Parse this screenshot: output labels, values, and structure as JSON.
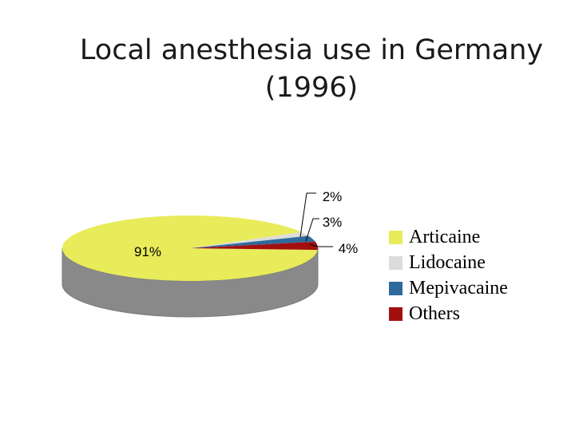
{
  "title_line1": "Local anesthesia use in Germany",
  "title_line2": "(1996)",
  "colors": {
    "articaine": "#e8ec5a",
    "lidocaine": "#dcdcdc",
    "mepivacaine": "#2e6a9c",
    "others": "#a30f0f",
    "side": "#898989"
  },
  "chart_data": {
    "type": "pie",
    "title": "Local anesthesia use in Germany (1996)",
    "categories": [
      "Articaine",
      "Lidocaine",
      "Mepivacaine",
      "Others"
    ],
    "values": [
      91,
      2,
      3,
      4
    ],
    "data_labels": [
      "91%",
      "2%",
      "3%",
      "4%"
    ],
    "legend_position": "right",
    "three_d": true
  }
}
